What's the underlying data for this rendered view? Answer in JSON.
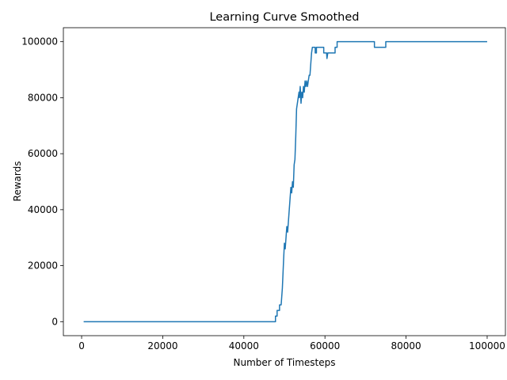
{
  "chart_data": {
    "type": "line",
    "title": "Learning Curve Smoothed",
    "xlabel": "Number of Timesteps",
    "ylabel": "Rewards",
    "xlim": [
      -4500,
      104500
    ],
    "ylim": [
      -5000,
      105000
    ],
    "xticks": [
      0,
      20000,
      40000,
      60000,
      80000,
      100000
    ],
    "yticks": [
      0,
      20000,
      40000,
      60000,
      80000,
      100000
    ],
    "grid": false,
    "legend": "none",
    "series": [
      {
        "color": "#1f77b4",
        "points": [
          [
            500,
            0
          ],
          [
            47800,
            0
          ],
          [
            47800,
            2000
          ],
          [
            48200,
            2000
          ],
          [
            48200,
            4000
          ],
          [
            48800,
            4000
          ],
          [
            48800,
            6000
          ],
          [
            49200,
            6000
          ],
          [
            49500,
            12000
          ],
          [
            49800,
            22000
          ],
          [
            50000,
            28000
          ],
          [
            50200,
            26000
          ],
          [
            50400,
            30000
          ],
          [
            50600,
            34000
          ],
          [
            50800,
            32000
          ],
          [
            51000,
            36000
          ],
          [
            51200,
            40000
          ],
          [
            51400,
            44000
          ],
          [
            51600,
            48000
          ],
          [
            51800,
            46000
          ],
          [
            52000,
            50000
          ],
          [
            52200,
            48000
          ],
          [
            52400,
            56000
          ],
          [
            52600,
            58000
          ],
          [
            52800,
            66000
          ],
          [
            53000,
            76000
          ],
          [
            53200,
            78000
          ],
          [
            53400,
            80000
          ],
          [
            53600,
            82000
          ],
          [
            53700,
            80000
          ],
          [
            53900,
            84000
          ],
          [
            54100,
            78000
          ],
          [
            54300,
            82000
          ],
          [
            54500,
            80000
          ],
          [
            54700,
            84000
          ],
          [
            54900,
            82000
          ],
          [
            55100,
            86000
          ],
          [
            55300,
            84000
          ],
          [
            55500,
            86000
          ],
          [
            55700,
            84000
          ],
          [
            55900,
            86000
          ],
          [
            56100,
            88000
          ],
          [
            56300,
            88000
          ],
          [
            56500,
            92000
          ],
          [
            56700,
            96000
          ],
          [
            56900,
            98000
          ],
          [
            57600,
            98000
          ],
          [
            57600,
            96000
          ],
          [
            57900,
            96000
          ],
          [
            57900,
            98000
          ],
          [
            59700,
            98000
          ],
          [
            59700,
            96000
          ],
          [
            60400,
            96000
          ],
          [
            60500,
            94000
          ],
          [
            60700,
            96000
          ],
          [
            62500,
            96000
          ],
          [
            62500,
            98000
          ],
          [
            63000,
            98000
          ],
          [
            63000,
            100000
          ],
          [
            72200,
            100000
          ],
          [
            72200,
            98000
          ],
          [
            75000,
            98000
          ],
          [
            75000,
            100000
          ],
          [
            100000,
            100000
          ]
        ]
      }
    ]
  }
}
